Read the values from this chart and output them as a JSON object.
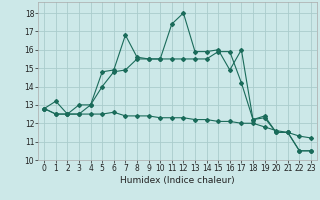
{
  "xlabel": "Humidex (Indice chaleur)",
  "background_color": "#cce8e8",
  "grid_color": "#aacccc",
  "line_color": "#1a6b5a",
  "xlim": [
    -0.5,
    23.5
  ],
  "ylim": [
    10,
    18.6
  ],
  "yticks": [
    10,
    11,
    12,
    13,
    14,
    15,
    16,
    17,
    18
  ],
  "xticks": [
    0,
    1,
    2,
    3,
    4,
    5,
    6,
    7,
    8,
    9,
    10,
    11,
    12,
    13,
    14,
    15,
    16,
    17,
    18,
    19,
    20,
    21,
    22,
    23
  ],
  "series1_x": [
    0,
    1,
    2,
    3,
    4,
    5,
    6,
    7,
    8,
    9,
    10,
    11,
    12,
    13,
    14,
    15,
    16,
    17,
    18,
    19,
    20,
    21,
    22,
    23
  ],
  "series1_y": [
    12.8,
    13.2,
    12.5,
    13.0,
    13.0,
    14.8,
    14.9,
    16.8,
    15.6,
    15.5,
    15.5,
    17.4,
    18.0,
    15.9,
    15.9,
    16.0,
    14.9,
    16.0,
    12.2,
    12.4,
    11.5,
    11.5,
    10.5,
    10.5
  ],
  "series2_x": [
    0,
    1,
    2,
    3,
    4,
    5,
    6,
    7,
    8,
    9,
    10,
    11,
    12,
    13,
    14,
    15,
    16,
    17,
    18,
    19,
    20,
    21,
    22,
    23
  ],
  "series2_y": [
    12.8,
    12.5,
    12.5,
    12.5,
    12.5,
    12.5,
    12.6,
    12.4,
    12.4,
    12.4,
    12.3,
    12.3,
    12.3,
    12.2,
    12.2,
    12.1,
    12.1,
    12.0,
    12.0,
    11.8,
    11.6,
    11.5,
    11.3,
    11.2
  ],
  "series3_x": [
    0,
    1,
    2,
    3,
    4,
    5,
    6,
    7,
    8,
    9,
    10,
    11,
    12,
    13,
    14,
    15,
    16,
    17,
    18,
    19,
    20,
    21,
    22,
    23
  ],
  "series3_y": [
    12.8,
    12.5,
    12.5,
    12.5,
    13.0,
    14.0,
    14.8,
    14.9,
    15.5,
    15.5,
    15.5,
    15.5,
    15.5,
    15.5,
    15.5,
    15.9,
    15.9,
    14.2,
    12.2,
    12.3,
    11.5,
    11.5,
    10.5,
    10.5
  ],
  "tick_fontsize": 5.5,
  "xlabel_fontsize": 6.5
}
